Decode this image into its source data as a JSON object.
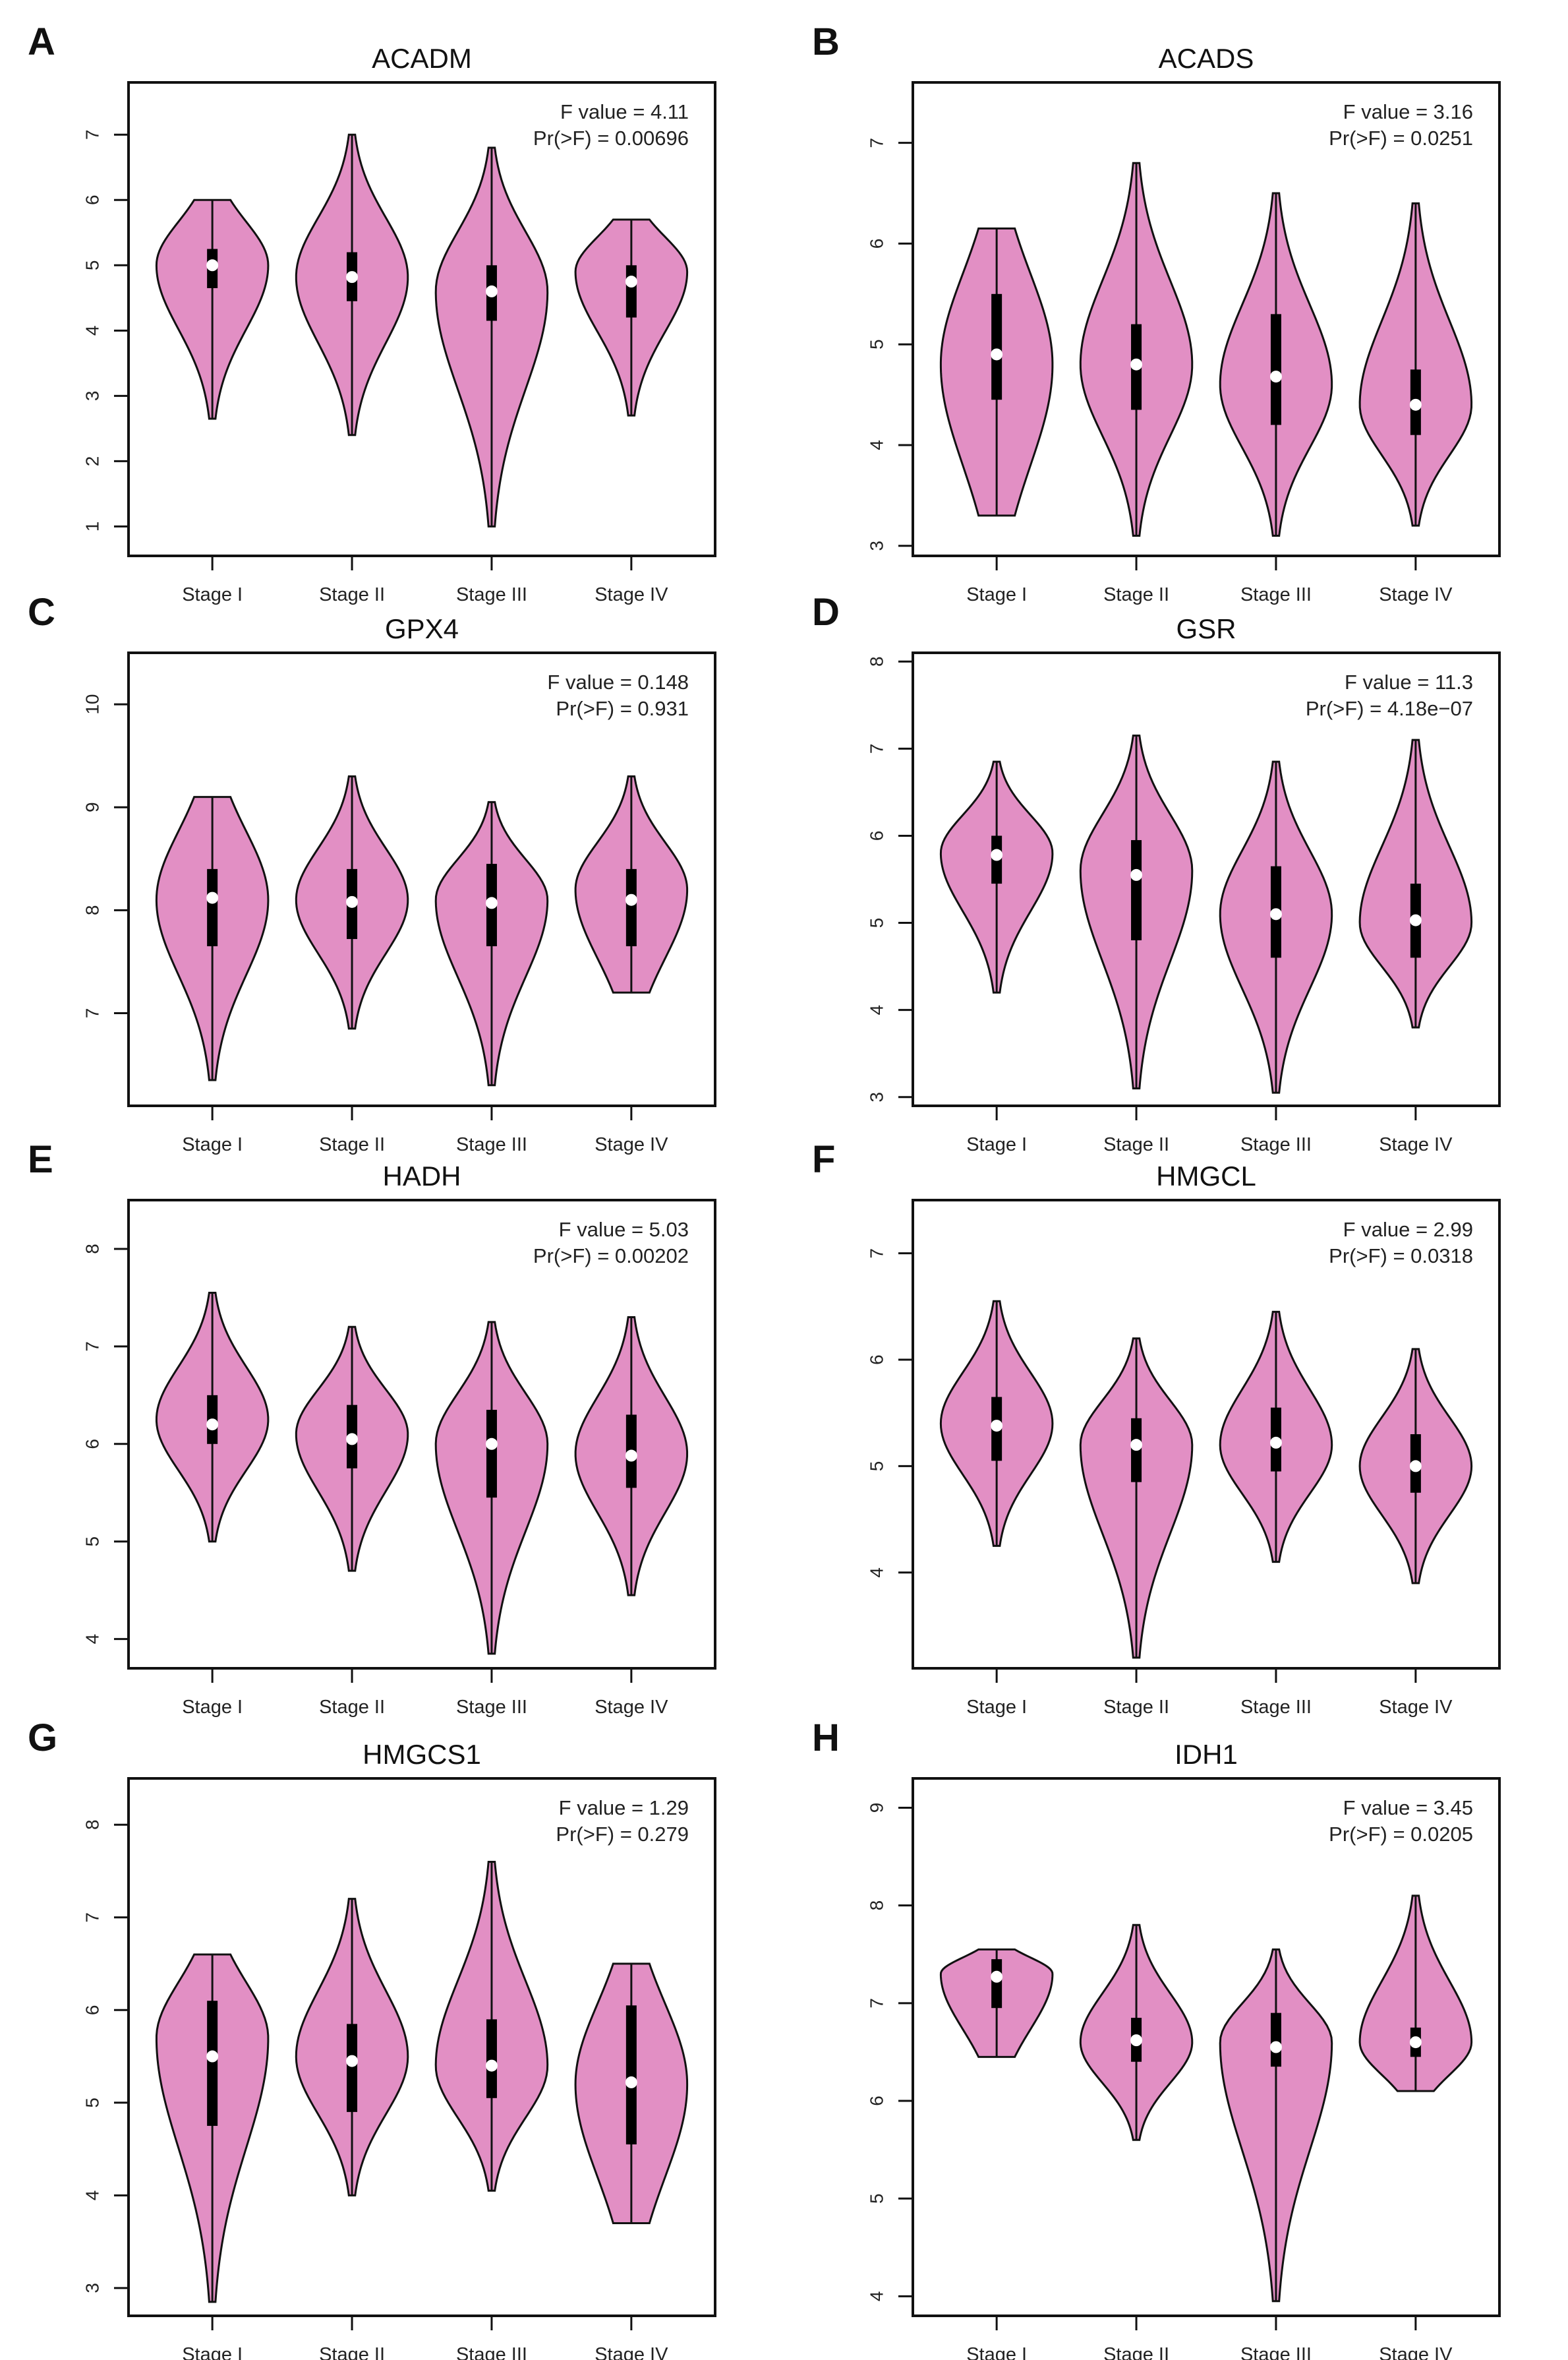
{
  "fill_color": "#e28fc4",
  "chart_data": [
    {
      "letter": "A",
      "type": "violin",
      "title": "ACADM",
      "f_text": "F value = 4.11",
      "p_text": "Pr(>F) = 0.00696",
      "categories": [
        "Stage I",
        "Stage II",
        "Stage III",
        "Stage IV"
      ],
      "yticks": [
        "1",
        "2",
        "3",
        "4",
        "5",
        "6",
        "7"
      ],
      "ylim": [
        0.55,
        7.8
      ],
      "violins": [
        {
          "min": 2.65,
          "max": 6.0,
          "q1": 4.65,
          "median": 5.0,
          "q3": 5.25,
          "mode": 5.0,
          "shape": "flat-top"
        },
        {
          "min": 2.4,
          "max": 7.0,
          "q1": 4.45,
          "median": 4.82,
          "q3": 5.2,
          "mode": 4.82
        },
        {
          "min": 1.0,
          "max": 6.8,
          "q1": 4.15,
          "median": 4.6,
          "q3": 5.0,
          "mode": 4.6
        },
        {
          "min": 2.7,
          "max": 5.7,
          "q1": 4.2,
          "median": 4.75,
          "q3": 5.0,
          "mode": 4.9,
          "shape": "flat-top"
        }
      ]
    },
    {
      "letter": "B",
      "type": "violin",
      "title": "ACADS",
      "f_text": "F value = 3.16",
      "p_text": "Pr(>F) = 0.0251",
      "categories": [
        "Stage I",
        "Stage II",
        "Stage III",
        "Stage IV"
      ],
      "yticks": [
        "3",
        "4",
        "5",
        "6",
        "7"
      ],
      "ylim": [
        2.9,
        7.6
      ],
      "violins": [
        {
          "min": 3.3,
          "max": 6.15,
          "q1": 4.45,
          "median": 4.9,
          "q3": 5.5,
          "mode": 4.8,
          "shape": "flat-both"
        },
        {
          "min": 3.1,
          "max": 6.8,
          "q1": 4.35,
          "median": 4.8,
          "q3": 5.2,
          "mode": 4.8
        },
        {
          "min": 3.1,
          "max": 6.5,
          "q1": 4.2,
          "median": 4.68,
          "q3": 5.3,
          "mode": 4.6
        },
        {
          "min": 3.2,
          "max": 6.4,
          "q1": 4.1,
          "median": 4.4,
          "q3": 4.75,
          "mode": 4.4
        }
      ]
    },
    {
      "letter": "C",
      "type": "violin",
      "title": "GPX4",
      "f_text": "F value = 0.148",
      "p_text": "Pr(>F) = 0.931",
      "categories": [
        "Stage I",
        "Stage II",
        "Stage III",
        "Stage IV"
      ],
      "yticks": [
        "7",
        "8",
        "9",
        "10"
      ],
      "ylim": [
        6.1,
        10.5
      ],
      "violins": [
        {
          "min": 6.35,
          "max": 9.1,
          "q1": 7.65,
          "median": 8.12,
          "q3": 8.4,
          "mode": 8.1,
          "shape": "flat-top"
        },
        {
          "min": 6.85,
          "max": 9.3,
          "q1": 7.72,
          "median": 8.08,
          "q3": 8.4,
          "mode": 8.1
        },
        {
          "min": 6.3,
          "max": 9.05,
          "q1": 7.65,
          "median": 8.07,
          "q3": 8.45,
          "mode": 8.1
        },
        {
          "min": 7.2,
          "max": 9.3,
          "q1": 7.65,
          "median": 8.1,
          "q3": 8.4,
          "mode": 8.2,
          "shape": "flat-bottom"
        }
      ]
    },
    {
      "letter": "D",
      "type": "violin",
      "title": "GSR",
      "f_text": "F value = 11.3",
      "p_text": "Pr(>F) = 4.18e−07",
      "categories": [
        "Stage I",
        "Stage II",
        "Stage III",
        "Stage IV"
      ],
      "yticks": [
        "3",
        "4",
        "5",
        "6",
        "7",
        "8"
      ],
      "ylim": [
        2.9,
        8.1
      ],
      "violins": [
        {
          "min": 4.2,
          "max": 6.85,
          "q1": 5.45,
          "median": 5.78,
          "q3": 6.0,
          "mode": 5.8
        },
        {
          "min": 3.1,
          "max": 7.15,
          "q1": 4.8,
          "median": 5.55,
          "q3": 5.95,
          "mode": 5.6
        },
        {
          "min": 3.05,
          "max": 6.85,
          "q1": 4.6,
          "median": 5.1,
          "q3": 5.65,
          "mode": 5.1
        },
        {
          "min": 3.8,
          "max": 7.1,
          "q1": 4.6,
          "median": 5.03,
          "q3": 5.45,
          "mode": 5.0
        }
      ]
    },
    {
      "letter": "E",
      "type": "violin",
      "title": "HADH",
      "f_text": "F value = 5.03",
      "p_text": "Pr(>F) = 0.00202",
      "categories": [
        "Stage I",
        "Stage II",
        "Stage III",
        "Stage IV"
      ],
      "yticks": [
        "4",
        "5",
        "6",
        "7",
        "8"
      ],
      "ylim": [
        3.7,
        8.5
      ],
      "violins": [
        {
          "min": 5.0,
          "max": 7.55,
          "q1": 6.0,
          "median": 6.2,
          "q3": 6.5,
          "mode": 6.25
        },
        {
          "min": 4.7,
          "max": 7.2,
          "q1": 5.75,
          "median": 6.05,
          "q3": 6.4,
          "mode": 6.1
        },
        {
          "min": 3.85,
          "max": 7.25,
          "q1": 5.45,
          "median": 6.0,
          "q3": 6.35,
          "mode": 6.0
        },
        {
          "min": 4.45,
          "max": 7.3,
          "q1": 5.55,
          "median": 5.88,
          "q3": 6.3,
          "mode": 5.9
        }
      ]
    },
    {
      "letter": "F",
      "type": "violin",
      "title": "HMGCL",
      "f_text": "F value = 2.99",
      "p_text": "Pr(>F) = 0.0318",
      "categories": [
        "Stage I",
        "Stage II",
        "Stage III",
        "Stage IV"
      ],
      "yticks": [
        "4",
        "5",
        "6",
        "7"
      ],
      "ylim": [
        3.1,
        7.5
      ],
      "violins": [
        {
          "min": 4.25,
          "max": 6.55,
          "q1": 5.05,
          "median": 5.38,
          "q3": 5.65,
          "mode": 5.4
        },
        {
          "min": 3.2,
          "max": 6.2,
          "q1": 4.85,
          "median": 5.2,
          "q3": 5.45,
          "mode": 5.2
        },
        {
          "min": 4.1,
          "max": 6.45,
          "q1": 4.95,
          "median": 5.22,
          "q3": 5.55,
          "mode": 5.2
        },
        {
          "min": 3.9,
          "max": 6.1,
          "q1": 4.75,
          "median": 5.0,
          "q3": 5.3,
          "mode": 5.0
        }
      ]
    },
    {
      "letter": "G",
      "type": "violin",
      "title": "HMGCS1",
      "f_text": "F value = 1.29",
      "p_text": "Pr(>F) = 0.279",
      "categories": [
        "Stage I",
        "Stage II",
        "Stage III",
        "Stage IV"
      ],
      "yticks": [
        "3",
        "4",
        "5",
        "6",
        "7",
        "8"
      ],
      "ylim": [
        2.7,
        8.5
      ],
      "violins": [
        {
          "min": 2.85,
          "max": 6.6,
          "q1": 4.75,
          "median": 5.5,
          "q3": 6.1,
          "mode": 5.7,
          "shape": "flat-top"
        },
        {
          "min": 4.0,
          "max": 7.2,
          "q1": 4.9,
          "median": 5.45,
          "q3": 5.85,
          "mode": 5.5
        },
        {
          "min": 4.05,
          "max": 7.6,
          "q1": 5.05,
          "median": 5.4,
          "q3": 5.9,
          "mode": 5.4
        },
        {
          "min": 3.7,
          "max": 6.5,
          "q1": 4.55,
          "median": 5.22,
          "q3": 6.05,
          "mode": 5.2,
          "shape": "flat-both"
        }
      ]
    },
    {
      "letter": "H",
      "type": "violin",
      "title": "IDH1",
      "f_text": "F value = 3.45",
      "p_text": "Pr(>F) = 0.0205",
      "categories": [
        "Stage I",
        "Stage II",
        "Stage III",
        "Stage IV"
      ],
      "yticks": [
        "4",
        "5",
        "6",
        "7",
        "8",
        "9"
      ],
      "ylim": [
        3.8,
        9.3
      ],
      "violins": [
        {
          "min": 6.45,
          "max": 7.55,
          "q1": 6.95,
          "median": 7.27,
          "q3": 7.45,
          "mode": 7.3,
          "shape": "flat-both"
        },
        {
          "min": 5.6,
          "max": 7.8,
          "q1": 6.4,
          "median": 6.62,
          "q3": 6.85,
          "mode": 6.6
        },
        {
          "min": 3.95,
          "max": 7.55,
          "q1": 6.35,
          "median": 6.55,
          "q3": 6.9,
          "mode": 6.6
        },
        {
          "min": 6.1,
          "max": 8.1,
          "q1": 6.45,
          "median": 6.6,
          "q3": 6.75,
          "mode": 6.6,
          "shape": "flat-bottom"
        }
      ]
    }
  ]
}
